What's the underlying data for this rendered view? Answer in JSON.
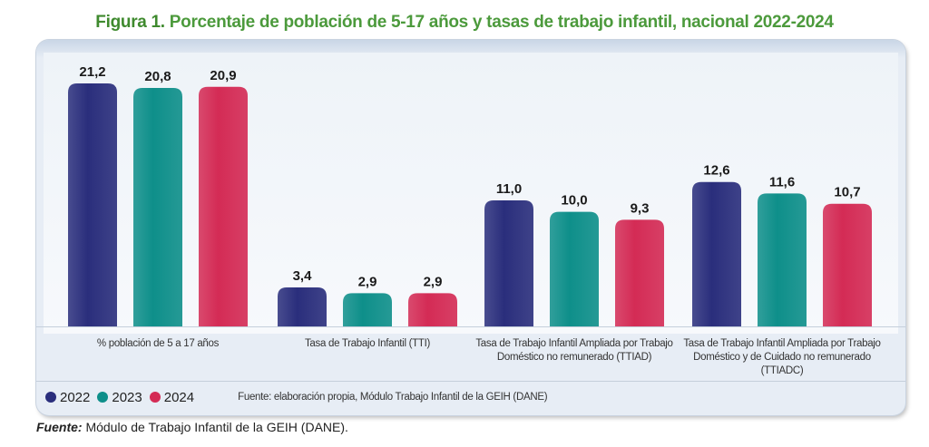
{
  "title_prefix": "Figura 1.",
  "title_text": "Porcentaje de población de 5-17 años y tasas de trabajo infantil, nacional 2022-2024",
  "chart_data": {
    "type": "bar",
    "categories": [
      "% población de 5 a 17 años",
      "Tasa de Trabajo Infantil (TTI)",
      "Tasa de Trabajo Infantil Ampliada por Trabajo Doméstico no remunerado (TTIAD)",
      "Tasa de Trabajo Infantil Ampliada por Trabajo Doméstico y de Cuidado no remunerado (TTIADC)"
    ],
    "series": [
      {
        "name": "2022",
        "color": "#2a2e7c",
        "values": [
          21.2,
          3.4,
          11.0,
          12.6
        ],
        "labels": [
          "21,2",
          "3,4",
          "11,0",
          "12,6"
        ]
      },
      {
        "name": "2023",
        "color": "#0e8f8a",
        "values": [
          20.8,
          2.9,
          10.0,
          11.6
        ],
        "labels": [
          "20,8",
          "2,9",
          "10,0",
          "11,6"
        ]
      },
      {
        "name": "2024",
        "color": "#d42b55",
        "values": [
          20.9,
          2.9,
          9.3,
          10.7
        ],
        "labels": [
          "20,9",
          "2,9",
          "9,3",
          "10,7"
        ]
      }
    ],
    "ylim": [
      0,
      21.2
    ],
    "grid": false,
    "legend_position": "bottom-left"
  },
  "category_labels": [
    [
      "% población de 5 a 17 años"
    ],
    [
      "Tasa de Trabajo Infantil (TTI)"
    ],
    [
      "Tasa de Trabajo Infantil Ampliada por Trabajo",
      "Doméstico no remunerado (TTIAD)"
    ],
    [
      "Tasa de Trabajo Infantil Ampliada por Trabajo",
      "Doméstico y de Cuidado no remunerado (TTIADC)"
    ]
  ],
  "inner_source": "Fuente: elaboración propia, Módulo Trabajo Infantil de la GEIH (DANE)",
  "footer_label": "Fuente:",
  "footer_text": " Módulo de Trabajo Infantil de la GEIH (DANE)."
}
